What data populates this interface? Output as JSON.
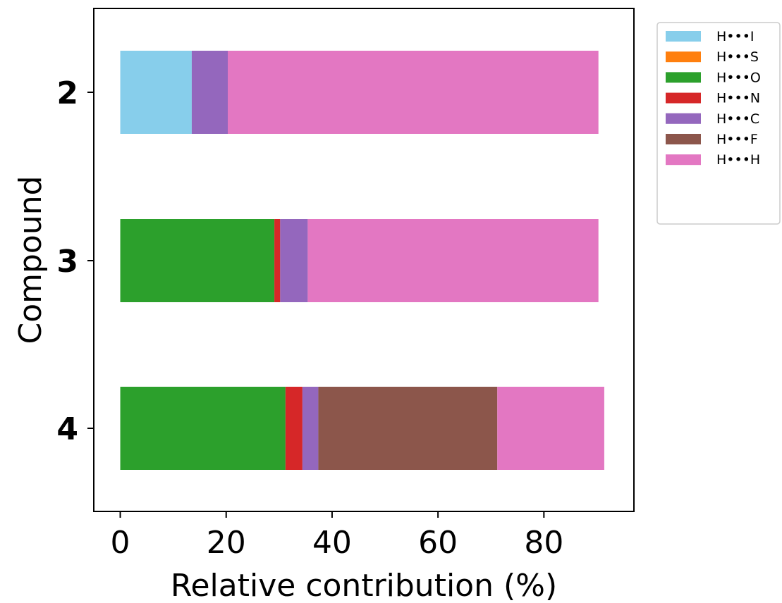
{
  "chart_data": {
    "type": "bar",
    "orientation": "horizontal",
    "stacked": true,
    "categories": [
      "2",
      "3",
      "4"
    ],
    "xlabel": "Relative contribution (%)",
    "ylabel": "Compound",
    "xlim": [
      -5,
      97
    ],
    "xticks": [
      0,
      20,
      40,
      60,
      80
    ],
    "grid": false,
    "legend_position": "outside-top-right",
    "series": [
      {
        "name": "H•••I",
        "color": "#87ceeb",
        "values": [
          13.5,
          0,
          0
        ]
      },
      {
        "name": "H•••S",
        "color": "#ff7f0e",
        "values": [
          0,
          0,
          0
        ]
      },
      {
        "name": "H•••O",
        "color": "#2ca02c",
        "values": [
          0,
          29.1,
          31.2
        ]
      },
      {
        "name": "H•••N",
        "color": "#d62728",
        "values": [
          0,
          1.1,
          3.2
        ]
      },
      {
        "name": "H•••C",
        "color": "#9467bd",
        "values": [
          6.8,
          5.2,
          3.0
        ]
      },
      {
        "name": "H•••F",
        "color": "#8c564b",
        "values": [
          0,
          0,
          33.8
        ]
      },
      {
        "name": "H•••H",
        "color": "#e377c2",
        "values": [
          70.0,
          54.9,
          20.2
        ]
      }
    ]
  }
}
